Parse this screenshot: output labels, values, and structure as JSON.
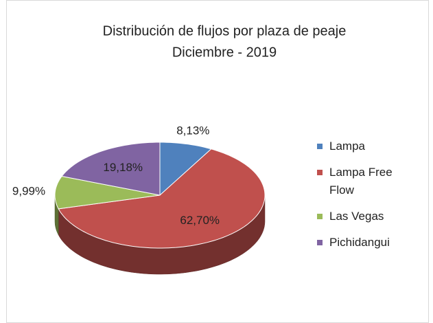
{
  "chart_data": {
    "type": "pie3d",
    "title": "Distribución de flujos por plaza de peaje",
    "subtitle": "Diciembre - 2019",
    "categories": [
      "Lampa",
      "Lampa Free Flow",
      "Las Vegas",
      "Pichidangui"
    ],
    "values": [
      8.13,
      62.7,
      9.99,
      19.18
    ],
    "value_labels": [
      "8,13%",
      "62,70%",
      "9,99%",
      "19,18%"
    ],
    "colors": [
      "#4f81bd",
      "#c0504d",
      "#9bbb59",
      "#8064a2"
    ],
    "legend": "right"
  }
}
